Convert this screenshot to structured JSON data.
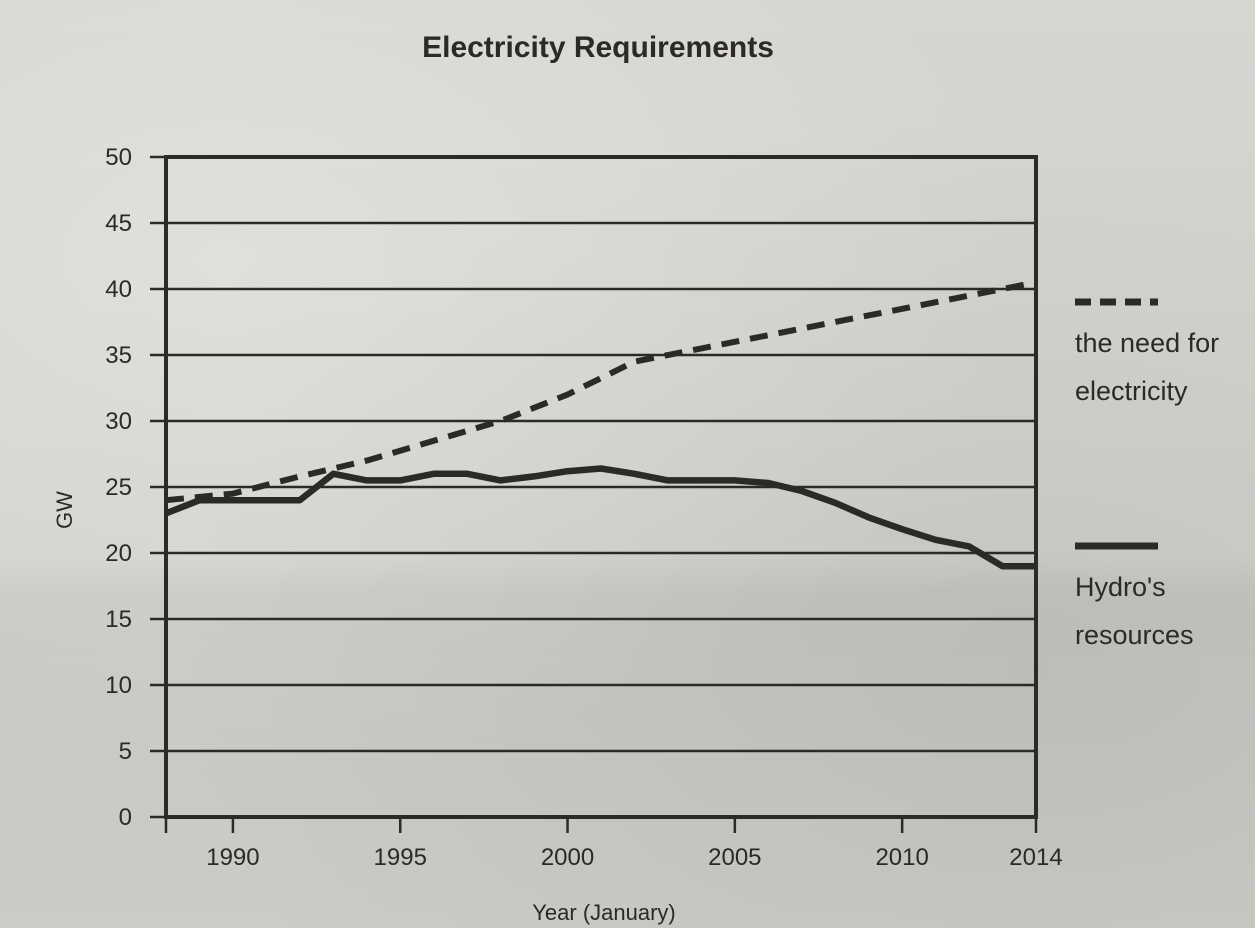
{
  "chart_data": {
    "type": "line",
    "title": "Electricity Requirements",
    "xlabel": "Year (January)",
    "ylabel": "GW",
    "xlim": [
      1988,
      2014
    ],
    "ylim": [
      0,
      50
    ],
    "x_ticks": [
      1990,
      1995,
      2000,
      2005,
      2010,
      2014
    ],
    "y_ticks": [
      0,
      5,
      10,
      15,
      20,
      25,
      30,
      35,
      40,
      45,
      50
    ],
    "grid": "horizontal",
    "legend_position": "right",
    "series": [
      {
        "name": "the need for electricity",
        "style": "dashed",
        "color": "#2b2a28",
        "x": [
          1988,
          1990,
          1992,
          1994,
          1996,
          1998,
          2000,
          2002,
          2004,
          2006,
          2008,
          2010,
          2012,
          2014
        ],
        "values": [
          24,
          24.5,
          25.8,
          27,
          28.5,
          30,
          32,
          34.5,
          35.5,
          36.5,
          37.5,
          38.5,
          39.5,
          40.5
        ]
      },
      {
        "name": "Hydro's resources",
        "style": "solid",
        "color": "#2b2a28",
        "x": [
          1988,
          1989,
          1990,
          1991,
          1992,
          1993,
          1994,
          1995,
          1996,
          1997,
          1998,
          1999,
          2000,
          2001,
          2002,
          2003,
          2004,
          2005,
          2006,
          2007,
          2008,
          2009,
          2010,
          2011,
          2012,
          2013,
          2014
        ],
        "values": [
          23,
          24,
          24,
          24,
          24,
          26,
          25.5,
          25.5,
          26,
          26,
          25.5,
          25.8,
          26.2,
          26.4,
          26,
          25.5,
          25.5,
          25.5,
          25.3,
          24.7,
          23.8,
          22.7,
          21.8,
          21,
          20.5,
          19,
          19
        ]
      }
    ]
  },
  "legend": {
    "need_lines": [
      "the need for",
      "electricity"
    ],
    "hydro_lines": [
      "Hydro's",
      "resources"
    ]
  }
}
